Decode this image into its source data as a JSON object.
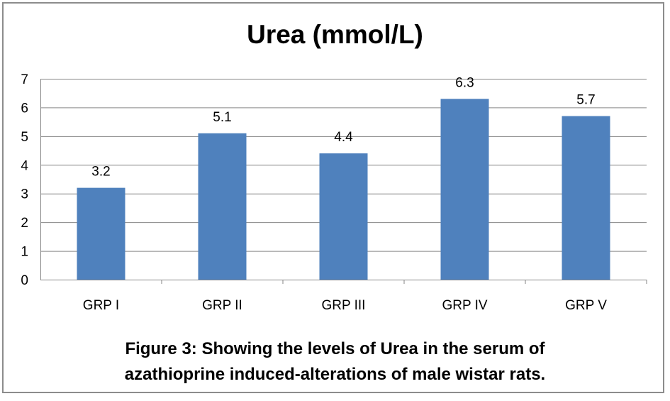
{
  "chart_data": {
    "type": "bar",
    "title": "Urea (mmol/L)",
    "categories": [
      "GRP I",
      "GRP II",
      "GRP III",
      "GRP IV",
      "GRP V"
    ],
    "values": [
      3.2,
      5.1,
      4.4,
      6.3,
      5.7
    ],
    "data_labels": [
      "3.2",
      "5.1",
      "4.4",
      "6.3",
      "5.7"
    ],
    "xlabel": "",
    "ylabel": "",
    "ylim": [
      0,
      7
    ],
    "yticks": [
      "0",
      "1",
      "2",
      "3",
      "4",
      "5",
      "6",
      "7"
    ],
    "grid": true,
    "legend": "none",
    "bar_color": "#4f81bd"
  },
  "caption": {
    "line1": "Figure 3: Showing the levels of Urea in the serum of",
    "line2": "azathioprine induced-alterations of male wistar rats."
  }
}
